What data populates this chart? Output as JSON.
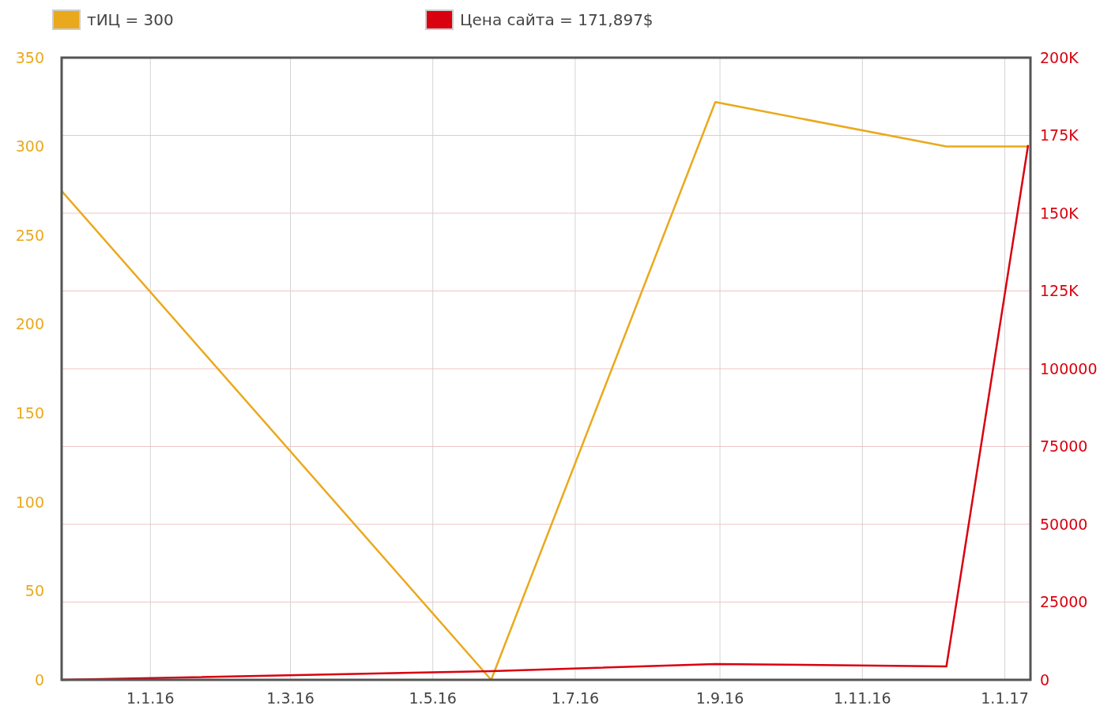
{
  "chart_data": {
    "type": "line",
    "x": [
      "2015-11-24",
      "2016-05-26",
      "2016-08-30",
      "2016-12-07",
      "2017-01-11"
    ],
    "series": [
      {
        "name": "тИЦ = 300",
        "color": "#eaa91c",
        "values": [
          275,
          0,
          325,
          300,
          300
        ]
      },
      {
        "name": "Цена сайта = 171,897$",
        "color": "#d9000f",
        "axis": "y2",
        "values": [
          0,
          2800,
          5100,
          4300,
          171897
        ]
      }
    ],
    "xlim": [
      "2015-11-24",
      "2017-01-12"
    ],
    "xticks": [
      {
        "value": "2016-01-01",
        "label": "1.1.16"
      },
      {
        "value": "2016-03-01",
        "label": "1.3.16"
      },
      {
        "value": "2016-05-01",
        "label": "1.5.16"
      },
      {
        "value": "2016-07-01",
        "label": "1.7.16"
      },
      {
        "value": "2016-09-01",
        "label": "1.9.16"
      },
      {
        "value": "2016-11-01",
        "label": "1.11.16"
      },
      {
        "value": "2017-01-01",
        "label": "1.1.17"
      }
    ],
    "ylim": [
      0,
      350
    ],
    "yticks": [
      0,
      50,
      100,
      150,
      200,
      250,
      300,
      350
    ],
    "y2lim": [
      0,
      200000
    ],
    "y2ticks": [
      0,
      25000,
      50000,
      75000,
      100000,
      {
        "value": 125000,
        "label": "125K"
      },
      {
        "value": 150000,
        "label": "150K"
      },
      {
        "value": 175000,
        "label": "175K"
      },
      {
        "value": 200000,
        "label": "200K"
      }
    ],
    "grid": true,
    "legend": "top left",
    "marker": "none",
    "line_style": "solid"
  }
}
